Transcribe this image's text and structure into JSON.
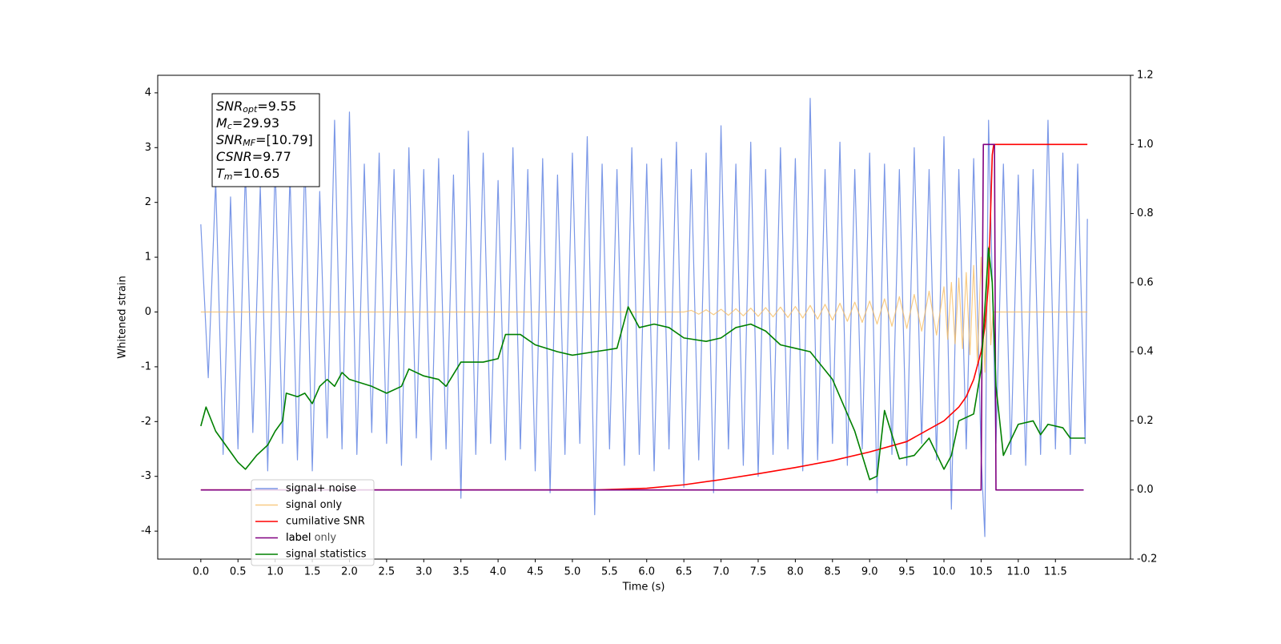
{
  "chart_data": {
    "type": "line",
    "xlabel": "Time (s)",
    "ylabel": "Whitened strain",
    "xlim": [
      -0.58,
      12.51
    ],
    "ylim": [
      -4.51,
      4.32
    ],
    "y2lim": [
      -0.2,
      1.2
    ],
    "xticks": [
      {
        "value": 0,
        "label": "0.0"
      },
      0.5,
      {
        "value": 1,
        "label": "1.0"
      },
      1.5,
      {
        "value": 2,
        "label": "2.0"
      },
      2.5,
      {
        "value": 3,
        "label": "3.0"
      },
      3.5,
      {
        "value": 4,
        "label": "4.0"
      },
      4.5,
      {
        "value": 5,
        "label": "5.0"
      },
      5.5,
      {
        "value": 6,
        "label": "6.0"
      },
      6.5,
      {
        "value": 7,
        "label": "7.0"
      },
      7.5,
      {
        "value": 8,
        "label": "8.0"
      },
      8.5,
      {
        "value": 9,
        "label": "9.0"
      },
      9.5,
      {
        "value": 10,
        "label": "10.0"
      },
      10.5,
      {
        "value": 11,
        "label": "11.0"
      },
      11.5
    ],
    "yticks": [
      -4,
      -3,
      -2,
      -1,
      0,
      1,
      2,
      3,
      4
    ],
    "y2ticks": [
      -0.2,
      {
        "value": 0,
        "label": "0.0"
      },
      0.2,
      0.4,
      0.6,
      0.8,
      {
        "value": 1,
        "label": "1.0"
      },
      1.2
    ],
    "grid": false,
    "legend": "lower left",
    "legend_overlap_text": "label only",
    "annotation": [
      {
        "symbol": "SNR",
        "sub": "opt",
        "text": "=9.55"
      },
      {
        "symbol": "M",
        "sub": "c",
        "text": "=29.93"
      },
      {
        "symbol": "SNR",
        "sub": "MF",
        "text": "=[10.79]"
      },
      {
        "symbol": "CSNR",
        "sub": null,
        "text": "=9.77"
      },
      {
        "symbol": "T",
        "sub": "m",
        "text": "=10.65"
      }
    ],
    "series": [
      {
        "name": "signal+ noise",
        "color": "#7391e6",
        "axis": "y",
        "x": [
          0.0,
          0.1,
          0.2,
          0.3,
          0.4,
          0.5,
          0.6,
          0.7,
          0.8,
          0.9,
          1.0,
          1.1,
          1.2,
          1.3,
          1.4,
          1.5,
          1.6,
          1.7,
          1.8,
          1.9,
          2.0,
          2.1,
          2.2,
          2.3,
          2.4,
          2.5,
          2.6,
          2.7,
          2.8,
          2.9,
          3.0,
          3.1,
          3.2,
          3.3,
          3.4,
          3.5,
          3.6,
          3.7,
          3.8,
          3.9,
          4.0,
          4.1,
          4.2,
          4.3,
          4.4,
          4.5,
          4.6,
          4.7,
          4.8,
          4.9,
          5.0,
          5.1,
          5.2,
          5.3,
          5.4,
          5.5,
          5.6,
          5.7,
          5.8,
          5.9,
          6.0,
          6.1,
          6.2,
          6.3,
          6.4,
          6.5,
          6.6,
          6.7,
          6.8,
          6.9,
          7.0,
          7.1,
          7.2,
          7.3,
          7.4,
          7.5,
          7.6,
          7.7,
          7.8,
          7.9,
          8.0,
          8.1,
          8.2,
          8.3,
          8.4,
          8.5,
          8.6,
          8.7,
          8.8,
          8.9,
          9.0,
          9.1,
          9.2,
          9.3,
          9.4,
          9.5,
          9.6,
          9.7,
          9.8,
          9.9,
          10.0,
          10.1,
          10.2,
          10.3,
          10.4,
          10.5,
          10.55,
          10.6,
          10.7,
          10.8,
          10.9,
          11.0,
          11.1,
          11.2,
          11.3,
          11.4,
          11.5,
          11.6,
          11.7,
          11.8,
          11.9,
          11.93
        ],
        "values": [
          1.6,
          -1.2,
          2.4,
          -2.6,
          2.1,
          -2.5,
          2.6,
          -2.2,
          2.3,
          -2.9,
          2.7,
          -2.4,
          2.5,
          -2.7,
          2.8,
          -2.9,
          2.2,
          -2.3,
          3.5,
          -2.5,
          3.65,
          -2.6,
          2.7,
          -2.2,
          2.9,
          -2.4,
          2.6,
          -2.8,
          3.0,
          -2.3,
          2.6,
          -2.7,
          2.8,
          -2.5,
          2.5,
          -3.4,
          3.3,
          -2.6,
          2.9,
          -2.4,
          2.4,
          -2.7,
          3.0,
          -2.5,
          2.6,
          -2.9,
          2.8,
          -3.3,
          2.5,
          -2.6,
          2.9,
          -2.4,
          3.2,
          -3.7,
          2.7,
          -2.5,
          2.6,
          -2.8,
          3.0,
          -2.6,
          2.7,
          -2.9,
          2.8,
          -2.5,
          3.1,
          -3.2,
          2.6,
          -2.7,
          2.9,
          -3.3,
          3.4,
          -2.5,
          2.7,
          -2.8,
          3.1,
          -3.0,
          2.6,
          -2.6,
          3.0,
          -2.5,
          2.8,
          -2.9,
          3.9,
          -2.7,
          2.6,
          -2.4,
          3.1,
          -2.8,
          2.6,
          -2.5,
          2.9,
          -3.3,
          2.7,
          -2.6,
          2.6,
          -2.8,
          3.0,
          -2.4,
          2.6,
          -2.7,
          3.2,
          -3.6,
          2.6,
          -2.5,
          2.8,
          -2.6,
          -4.1,
          3.5,
          -2.4,
          2.7,
          -2.6,
          2.5,
          -2.8,
          2.6,
          -2.6,
          3.5,
          -2.5,
          2.9,
          -2.6,
          2.7,
          -2.4,
          1.7
        ]
      },
      {
        "name": "signal only",
        "color": "#f5b95c",
        "axis": "y",
        "x": [
          0.0,
          6.5,
          6.6,
          6.7,
          6.8,
          6.9,
          7.0,
          7.1,
          7.2,
          7.3,
          7.4,
          7.5,
          7.6,
          7.7,
          7.8,
          7.9,
          8.0,
          8.1,
          8.2,
          8.3,
          8.4,
          8.5,
          8.6,
          8.7,
          8.8,
          8.9,
          9.0,
          9.1,
          9.2,
          9.3,
          9.4,
          9.5,
          9.6,
          9.7,
          9.8,
          9.9,
          10.0,
          10.05,
          10.1,
          10.15,
          10.2,
          10.25,
          10.3,
          10.35,
          10.4,
          10.45,
          10.5,
          10.55,
          10.6,
          10.63,
          10.66,
          11.93
        ],
        "values": [
          0,
          0,
          0.03,
          -0.04,
          0.04,
          -0.05,
          0.05,
          -0.06,
          0.06,
          -0.07,
          0.07,
          -0.08,
          0.08,
          -0.09,
          0.09,
          -0.1,
          0.1,
          -0.11,
          0.12,
          -0.13,
          0.14,
          -0.15,
          0.16,
          -0.17,
          0.18,
          -0.19,
          0.2,
          -0.22,
          0.24,
          -0.26,
          0.28,
          -0.3,
          0.32,
          -0.35,
          0.38,
          -0.42,
          0.46,
          -0.5,
          0.54,
          -0.58,
          0.62,
          -0.67,
          0.72,
          -0.78,
          0.85,
          -0.92,
          1.0,
          -1.1,
          1.2,
          -0.6,
          0,
          0
        ]
      },
      {
        "name": "cumilative SNR",
        "color": "#ff0000",
        "axis": "y2",
        "x": [
          0.0,
          5.3,
          6.0,
          6.5,
          7.0,
          7.5,
          8.0,
          8.5,
          9.0,
          9.5,
          10.0,
          10.2,
          10.3,
          10.4,
          10.5,
          10.55,
          10.6,
          10.65,
          10.67,
          11.93
        ],
        "values": [
          0,
          0,
          0.005,
          0.015,
          0.03,
          0.047,
          0.065,
          0.085,
          0.11,
          0.14,
          0.2,
          0.24,
          0.27,
          0.32,
          0.4,
          0.47,
          0.6,
          0.97,
          1.0,
          1.0
        ]
      },
      {
        "name": "label",
        "color": "#800080",
        "axis": "y2",
        "x": [
          0.0,
          10.5,
          10.53,
          10.68,
          10.7,
          11.88
        ],
        "values": [
          0,
          0,
          1.0,
          1.0,
          0,
          0
        ]
      },
      {
        "name": "signal statistics",
        "color": "#008000",
        "axis": "y2",
        "x": [
          0.0,
          0.07,
          0.2,
          0.4,
          0.5,
          0.6,
          0.75,
          0.9,
          1.0,
          1.1,
          1.15,
          1.3,
          1.4,
          1.5,
          1.6,
          1.7,
          1.8,
          1.9,
          2.0,
          2.3,
          2.5,
          2.7,
          2.8,
          3.0,
          3.2,
          3.3,
          3.5,
          3.8,
          4.0,
          4.1,
          4.3,
          4.5,
          4.8,
          5.0,
          5.3,
          5.6,
          5.75,
          5.9,
          6.1,
          6.3,
          6.5,
          6.8,
          7.0,
          7.2,
          7.4,
          7.6,
          7.8,
          8.0,
          8.2,
          8.5,
          8.8,
          9.0,
          9.1,
          9.2,
          9.4,
          9.6,
          9.8,
          10.0,
          10.1,
          10.2,
          10.4,
          10.5,
          10.6,
          10.65,
          10.7,
          10.8,
          11.0,
          11.2,
          11.3,
          11.4,
          11.6,
          11.7,
          11.9
        ],
        "values": [
          0.185,
          0.24,
          0.17,
          0.11,
          0.08,
          0.06,
          0.1,
          0.13,
          0.17,
          0.2,
          0.28,
          0.27,
          0.28,
          0.25,
          0.3,
          0.32,
          0.3,
          0.34,
          0.32,
          0.3,
          0.28,
          0.3,
          0.35,
          0.33,
          0.32,
          0.3,
          0.37,
          0.37,
          0.38,
          0.45,
          0.45,
          0.42,
          0.4,
          0.39,
          0.4,
          0.41,
          0.53,
          0.47,
          0.48,
          0.47,
          0.44,
          0.43,
          0.44,
          0.47,
          0.48,
          0.46,
          0.42,
          0.41,
          0.4,
          0.32,
          0.17,
          0.03,
          0.04,
          0.23,
          0.09,
          0.1,
          0.15,
          0.06,
          0.1,
          0.2,
          0.22,
          0.35,
          0.7,
          0.6,
          0.3,
          0.1,
          0.19,
          0.2,
          0.16,
          0.19,
          0.18,
          0.15,
          0.15
        ]
      }
    ]
  }
}
